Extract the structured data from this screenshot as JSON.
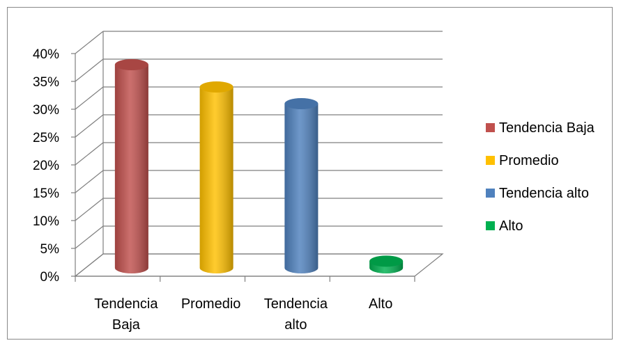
{
  "chart_data": {
    "type": "bar",
    "title": "",
    "xlabel": "",
    "ylabel": "",
    "categories": [
      [
        "Tendencia",
        "Baja"
      ],
      [
        "Promedio"
      ],
      [
        "Tendencia",
        "alto"
      ],
      [
        "Alto"
      ]
    ],
    "ylim": [
      0,
      40
    ],
    "yticks": [
      0,
      5,
      10,
      15,
      20,
      25,
      30,
      35,
      40
    ],
    "ytick_labels": [
      "0%",
      "5%",
      "10%",
      "15%",
      "20%",
      "25%",
      "30%",
      "35%",
      "40%"
    ],
    "values": [
      36.5,
      32.5,
      29.5,
      1.2
    ],
    "colors": [
      "#c0504d",
      "#ffc000",
      "#4f81bd",
      "#00b050"
    ],
    "grid": true,
    "legend": {
      "placement": "right",
      "entries": [
        "Tendencia Baja",
        "Promedio",
        "Tendencia alto",
        "Alto"
      ]
    }
  }
}
